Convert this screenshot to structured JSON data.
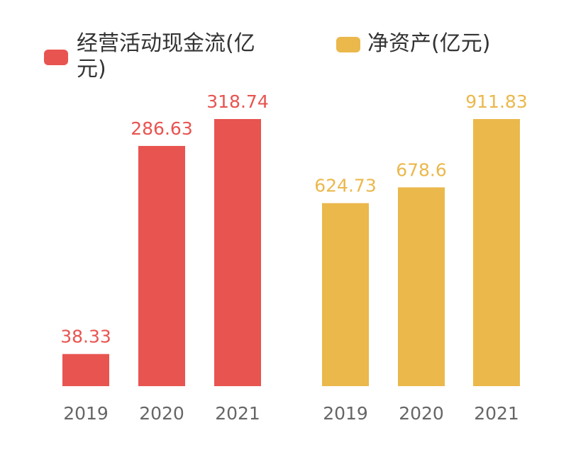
{
  "chart_data": [
    {
      "type": "bar",
      "legend": "经营活动现金流(亿元)",
      "color": "#e85450",
      "categories": [
        "2019",
        "2020",
        "2021"
      ],
      "values": [
        38.33,
        286.63,
        318.74
      ],
      "value_labels": [
        "38.33",
        "286.63",
        "318.74"
      ],
      "ylim": [
        0,
        318.74
      ]
    },
    {
      "type": "bar",
      "legend": "净资产(亿元)",
      "color": "#ebb84c",
      "categories": [
        "2019",
        "2020",
        "2021"
      ],
      "values": [
        624.73,
        678.6,
        911.83
      ],
      "value_labels": [
        "624.73",
        "678.6",
        "911.83"
      ],
      "ylim": [
        0,
        911.83
      ]
    }
  ]
}
